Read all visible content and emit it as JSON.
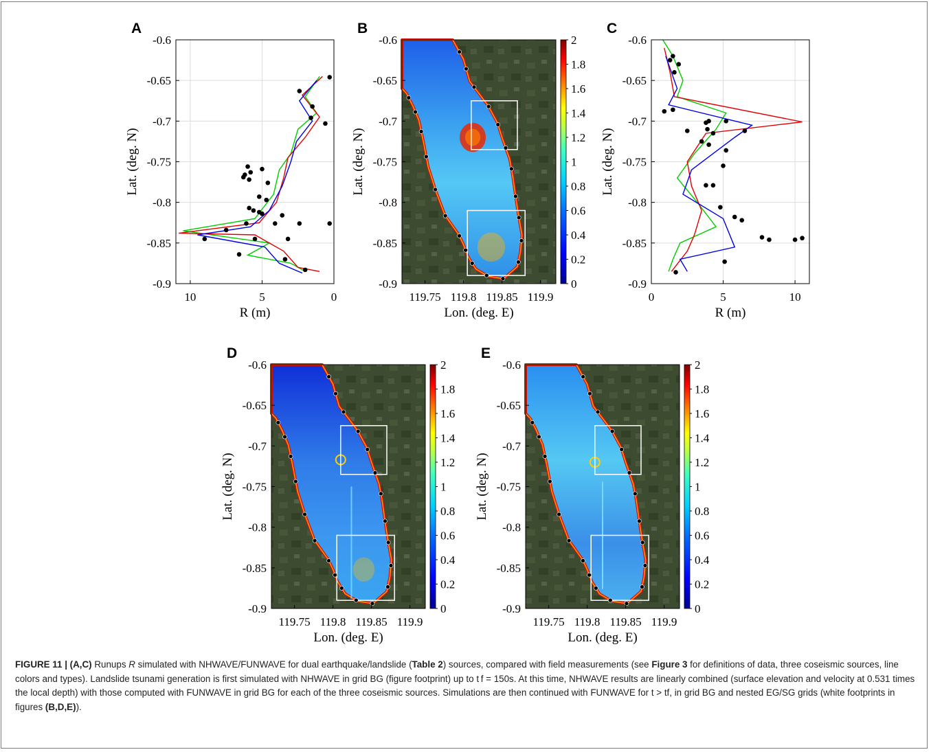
{
  "figure": {
    "label": "FIGURE 11",
    "separator": " | ",
    "caption_parts": [
      {
        "b": true,
        "t": "(A,C)"
      },
      {
        "b": false,
        "t": " Runups "
      },
      {
        "b": false,
        "i": true,
        "t": "R"
      },
      {
        "b": false,
        "t": " simulated with NHWAVE/FUNWAVE for dual earthquake/landslide ("
      },
      {
        "b": true,
        "t": "Table 2"
      },
      {
        "b": false,
        "t": ") sources, compared with field measurements (see "
      },
      {
        "b": true,
        "t": "Figure 3"
      },
      {
        "b": false,
        "t": " for definitions of data, three coseismic sources, line colors and types). Landslide tsunami generation is first simulated with NHWAVE in grid BG (figure footprint) up to t f = 150s. At this time, NHWAVE results are linearly combined (surface elevation and velocity at 0.531 times the local depth) with those computed with FUNWAVE in grid BG for each of the three coseismic sources. Simulations are then continued with FUNWAVE for t > tf, in grid BG and nested EG/SG grids (white footprints in figures "
      },
      {
        "b": true,
        "t": "(B,D,E)"
      },
      {
        "b": false,
        "t": ")."
      }
    ]
  },
  "panels": {
    "A": {
      "label": "A",
      "ylabel": "Lat. (deg. N)",
      "xlabel": "R (m)",
      "xticks": [
        "10",
        "5",
        "0"
      ]
    },
    "B": {
      "label": "B",
      "ylabel": "Lat. (deg. N)",
      "xlabel": "Lon. (deg. E)"
    },
    "C": {
      "label": "C",
      "ylabel": "Lat. (deg. N)",
      "xlabel": "R (m)",
      "xticks": [
        "0",
        "5",
        "10"
      ]
    },
    "D": {
      "label": "D",
      "ylabel": "Lat. (deg. N)",
      "xlabel": "Lon. (deg. E)"
    },
    "E": {
      "label": "E",
      "ylabel": "Lat. (deg. N)",
      "xlabel": "Lon. (deg. E)"
    }
  },
  "yticks": [
    "-0.6",
    "-0.65",
    "-0.7",
    "-0.75",
    "-0.8",
    "-0.85",
    "-0.9"
  ],
  "lon_ticks": [
    "119.75",
    "119.8",
    "119.85",
    "119.9"
  ],
  "colorbar_ticks": [
    "2",
    "1.8",
    "1.6",
    "1.4",
    "1.2",
    "1",
    "0.8",
    "0.6",
    "0.4",
    "0.2",
    "0"
  ],
  "colors": {
    "series_green": "#00cc00",
    "series_red": "#e00000",
    "series_blue": "#0000e6",
    "field_data": "#000000",
    "land": "#3b4a2e",
    "colormap": [
      "#00008f",
      "#0000ff",
      "#0080ff",
      "#00ffff",
      "#80ff80",
      "#ffff00",
      "#ff8000",
      "#ff0000",
      "#800000"
    ]
  },
  "chart_data": [
    {
      "type": "line",
      "panel": "A",
      "xlabel": "R (m)",
      "ylabel": "Lat. (deg. N)",
      "xlim": [
        11,
        0
      ],
      "ylim": [
        -0.9,
        -0.6
      ],
      "x_reversed": true,
      "series": [
        {
          "color": "#00cc00",
          "points": [
            [
              1.0,
              -0.645
            ],
            [
              2.0,
              -0.67
            ],
            [
              1.2,
              -0.69
            ],
            [
              2.5,
              -0.71
            ],
            [
              3.0,
              -0.74
            ],
            [
              3.8,
              -0.76
            ],
            [
              4.2,
              -0.79
            ],
            [
              5.5,
              -0.82
            ],
            [
              10.5,
              -0.835
            ],
            [
              4.5,
              -0.85
            ],
            [
              6.0,
              -0.865
            ],
            [
              3.0,
              -0.875
            ],
            [
              2.0,
              -0.885
            ]
          ]
        },
        {
          "color": "#e00000",
          "points": [
            [
              0.8,
              -0.645
            ],
            [
              2.2,
              -0.668
            ],
            [
              1.0,
              -0.695
            ],
            [
              2.0,
              -0.72
            ],
            [
              3.2,
              -0.745
            ],
            [
              3.5,
              -0.77
            ],
            [
              4.0,
              -0.8
            ],
            [
              5.2,
              -0.825
            ],
            [
              10.8,
              -0.838
            ],
            [
              5.5,
              -0.84
            ],
            [
              3.5,
              -0.86
            ],
            [
              2.5,
              -0.88
            ],
            [
              1.0,
              -0.885
            ]
          ]
        },
        {
          "color": "#0000e6",
          "points": [
            [
              1.2,
              -0.65
            ],
            [
              2.4,
              -0.675
            ],
            [
              1.5,
              -0.7
            ],
            [
              2.6,
              -0.725
            ],
            [
              3.0,
              -0.75
            ],
            [
              3.6,
              -0.78
            ],
            [
              4.5,
              -0.81
            ],
            [
              5.8,
              -0.83
            ],
            [
              9.5,
              -0.84
            ],
            [
              4.8,
              -0.855
            ],
            [
              3.8,
              -0.875
            ],
            [
              2.2,
              -0.887
            ]
          ]
        }
      ],
      "field_data": [
        [
          0.3,
          -0.646
        ],
        [
          2.4,
          -0.663
        ],
        [
          1.5,
          -0.682
        ],
        [
          1.6,
          -0.696
        ],
        [
          0.6,
          -0.703
        ],
        [
          6.0,
          -0.756
        ],
        [
          5.8,
          -0.763
        ],
        [
          6.2,
          -0.766
        ],
        [
          5.9,
          -0.772
        ],
        [
          5.0,
          -0.759
        ],
        [
          4.6,
          -0.776
        ],
        [
          6.3,
          -0.769
        ],
        [
          5.2,
          -0.793
        ],
        [
          4.7,
          -0.797
        ],
        [
          5.9,
          -0.807
        ],
        [
          5.6,
          -0.81
        ],
        [
          5.2,
          -0.812
        ],
        [
          5.0,
          -0.814
        ],
        [
          3.6,
          -0.816
        ],
        [
          6.1,
          -0.826
        ],
        [
          4.1,
          -0.826
        ],
        [
          2.4,
          -0.826
        ],
        [
          0.3,
          -0.826
        ],
        [
          9.0,
          -0.845
        ],
        [
          7.5,
          -0.834
        ],
        [
          5.5,
          -0.845
        ],
        [
          3.2,
          -0.845
        ],
        [
          6.6,
          -0.864
        ],
        [
          3.4,
          -0.87
        ],
        [
          2.0,
          -0.883
        ]
      ]
    },
    {
      "type": "line",
      "panel": "C",
      "xlabel": "R (m)",
      "ylabel": "Lat. (deg. N)",
      "xlim": [
        0,
        11
      ],
      "ylim": [
        -0.9,
        -0.6
      ],
      "series": [
        {
          "color": "#00cc00",
          "points": [
            [
              0.8,
              -0.6
            ],
            [
              1.5,
              -0.62
            ],
            [
              2.2,
              -0.65
            ],
            [
              1.8,
              -0.67
            ],
            [
              5.2,
              -0.69
            ],
            [
              4.5,
              -0.71
            ],
            [
              3.0,
              -0.74
            ],
            [
              1.8,
              -0.77
            ],
            [
              3.2,
              -0.8
            ],
            [
              4.5,
              -0.83
            ],
            [
              2.0,
              -0.85
            ],
            [
              1.5,
              -0.87
            ],
            [
              1.2,
              -0.885
            ]
          ]
        },
        {
          "color": "#e00000",
          "points": [
            [
              0.9,
              -0.61
            ],
            [
              1.3,
              -0.64
            ],
            [
              1.6,
              -0.67
            ],
            [
              10.5,
              -0.701
            ],
            [
              3.8,
              -0.715
            ],
            [
              2.5,
              -0.75
            ],
            [
              2.8,
              -0.78
            ],
            [
              3.5,
              -0.81
            ],
            [
              3.0,
              -0.84
            ],
            [
              2.5,
              -0.86
            ],
            [
              1.4,
              -0.885
            ]
          ]
        },
        {
          "color": "#0000e6",
          "points": [
            [
              1.0,
              -0.62
            ],
            [
              1.8,
              -0.66
            ],
            [
              1.2,
              -0.68
            ],
            [
              7.0,
              -0.705
            ],
            [
              5.8,
              -0.72
            ],
            [
              2.8,
              -0.76
            ],
            [
              2.2,
              -0.79
            ],
            [
              5.0,
              -0.82
            ],
            [
              5.8,
              -0.855
            ],
            [
              2.0,
              -0.87
            ],
            [
              2.5,
              -0.885
            ]
          ]
        }
      ],
      "field_data": [
        [
          1.5,
          -0.62
        ],
        [
          1.3,
          -0.625
        ],
        [
          1.9,
          -0.63
        ],
        [
          1.6,
          -0.64
        ],
        [
          0.9,
          -0.688
        ],
        [
          1.5,
          -0.686
        ],
        [
          4.0,
          -0.7
        ],
        [
          3.8,
          -0.702
        ],
        [
          5.2,
          -0.7
        ],
        [
          3.9,
          -0.71
        ],
        [
          4.3,
          -0.715
        ],
        [
          6.5,
          -0.712
        ],
        [
          2.5,
          -0.712
        ],
        [
          3.5,
          -0.725
        ],
        [
          4.0,
          -0.729
        ],
        [
          5.2,
          -0.736
        ],
        [
          5.0,
          -0.755
        ],
        [
          3.8,
          -0.779
        ],
        [
          4.3,
          -0.779
        ],
        [
          4.8,
          -0.806
        ],
        [
          5.8,
          -0.818
        ],
        [
          6.3,
          -0.822
        ],
        [
          7.7,
          -0.843
        ],
        [
          8.2,
          -0.846
        ],
        [
          10.0,
          -0.846
        ],
        [
          10.5,
          -0.844
        ],
        [
          5.1,
          -0.873
        ],
        [
          1.7,
          -0.886
        ]
      ]
    },
    {
      "type": "heatmap",
      "panel": "B",
      "xlabel": "Lon. (deg. E)",
      "ylabel": "Lat. (deg. N)",
      "xlim": [
        119.72,
        119.92
      ],
      "ylim": [
        -0.9,
        -0.6
      ],
      "colorbar": {
        "min": 0,
        "max": 2
      },
      "nested_grids": [
        {
          "lon": [
            119.81,
            119.87
          ],
          "lat": [
            -0.735,
            -0.675
          ]
        },
        {
          "lon": [
            119.805,
            119.88
          ],
          "lat": [
            -0.89,
            -0.81
          ]
        }
      ]
    },
    {
      "type": "heatmap",
      "panel": "D",
      "xlabel": "Lon. (deg. E)",
      "ylabel": "Lat. (deg. N)",
      "xlim": [
        119.72,
        119.92
      ],
      "ylim": [
        -0.9,
        -0.6
      ],
      "colorbar": {
        "min": 0,
        "max": 2
      },
      "nested_grids": [
        {
          "lon": [
            119.81,
            119.87
          ],
          "lat": [
            -0.735,
            -0.675
          ]
        },
        {
          "lon": [
            119.805,
            119.88
          ],
          "lat": [
            -0.89,
            -0.81
          ]
        }
      ]
    },
    {
      "type": "heatmap",
      "panel": "E",
      "xlabel": "Lon. (deg. E)",
      "ylabel": "Lat. (deg. N)",
      "xlim": [
        119.72,
        119.92
      ],
      "ylim": [
        -0.9,
        -0.6
      ],
      "colorbar": {
        "min": 0,
        "max": 2
      },
      "nested_grids": [
        {
          "lon": [
            119.81,
            119.87
          ],
          "lat": [
            -0.735,
            -0.675
          ]
        },
        {
          "lon": [
            119.805,
            119.88
          ],
          "lat": [
            -0.89,
            -0.81
          ]
        }
      ]
    }
  ]
}
